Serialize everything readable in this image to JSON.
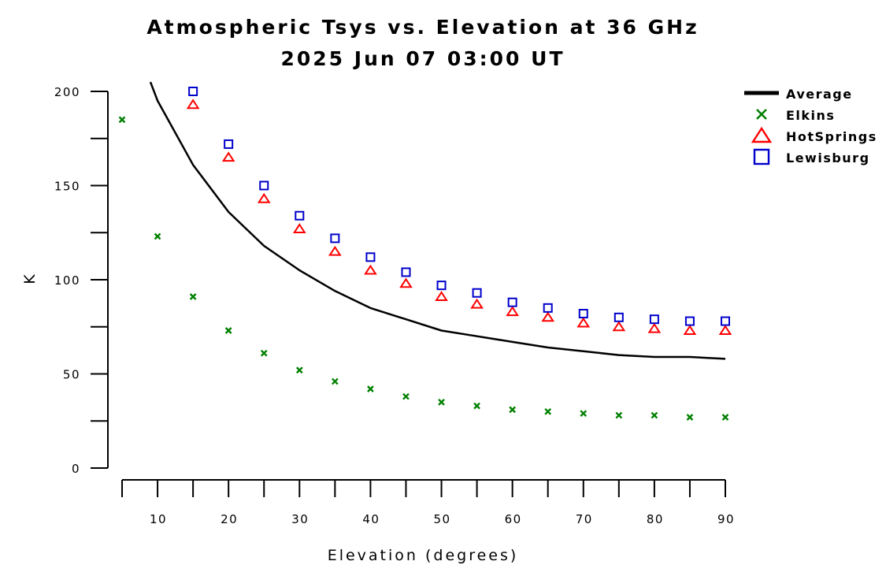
{
  "chart_data": {
    "type": "line",
    "title": "Atmospheric Tsys vs. Elevation at 36 GHz",
    "subtitle": "2025 Jun 07 03:00 UT",
    "xlabel": "Elevation (degrees)",
    "ylabel": "K",
    "xlim": [
      5,
      90
    ],
    "ylim": [
      0,
      200
    ],
    "x_ticks": [
      10,
      20,
      30,
      40,
      50,
      60,
      70,
      80,
      90
    ],
    "y_ticks": [
      0,
      50,
      100,
      150,
      200
    ],
    "grid": false,
    "legend_position": "top-right",
    "series": [
      {
        "name": "Average",
        "style": "line",
        "color": "#000000",
        "x": [
          9,
          10,
          15,
          20,
          25,
          30,
          35,
          40,
          45,
          50,
          55,
          60,
          65,
          70,
          75,
          80,
          85,
          90
        ],
        "y": [
          205,
          195,
          161,
          136,
          118,
          105,
          94,
          85,
          79,
          73,
          70,
          67,
          64,
          62,
          60,
          59,
          59,
          58
        ]
      },
      {
        "name": "Elkins",
        "style": "x",
        "color": "#008000",
        "x": [
          5,
          10,
          15,
          20,
          25,
          30,
          35,
          40,
          45,
          50,
          55,
          60,
          65,
          70,
          75,
          80,
          85,
          90
        ],
        "y": [
          185,
          123,
          91,
          73,
          61,
          52,
          46,
          42,
          38,
          35,
          33,
          31,
          30,
          29,
          28,
          28,
          27,
          27
        ]
      },
      {
        "name": "HotSprings",
        "style": "triangle",
        "color": "#ff0000",
        "x": [
          15,
          20,
          25,
          30,
          35,
          40,
          45,
          50,
          55,
          60,
          65,
          70,
          75,
          80,
          85,
          90
        ],
        "y": [
          193,
          165,
          143,
          127,
          115,
          105,
          98,
          91,
          87,
          83,
          80,
          77,
          75,
          74,
          73,
          73
        ]
      },
      {
        "name": "Lewisburg",
        "style": "square",
        "color": "#0000cc",
        "x": [
          15,
          20,
          25,
          30,
          35,
          40,
          45,
          50,
          55,
          60,
          65,
          70,
          75,
          80,
          85,
          90
        ],
        "y": [
          200,
          172,
          150,
          134,
          122,
          112,
          104,
          97,
          93,
          88,
          85,
          82,
          80,
          79,
          78,
          78
        ]
      }
    ]
  }
}
